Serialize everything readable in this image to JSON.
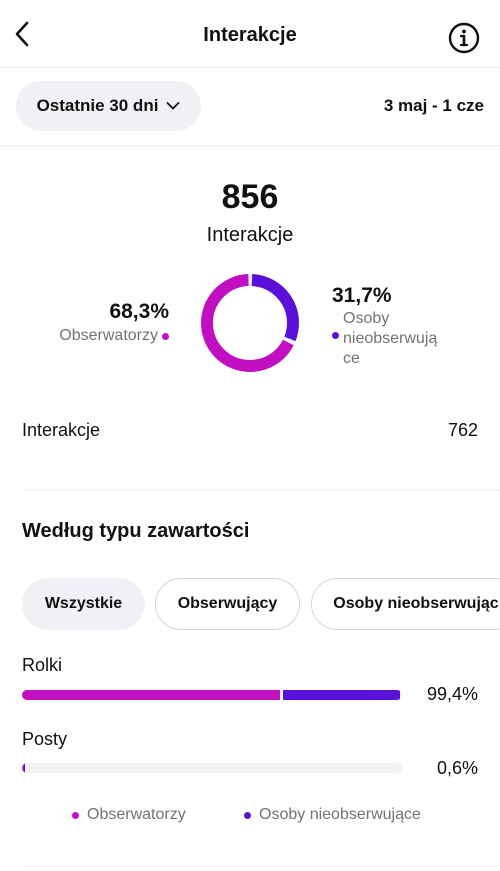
{
  "header": {
    "title": "Interakcje"
  },
  "filter": {
    "period_label": "Ostatnie 30 dni",
    "date_range": "3 maj - 1 cze"
  },
  "summary": {
    "total": "856",
    "total_label": "Interakcje",
    "followers_pct": "68,3%",
    "followers_label": "Obserwatorzy",
    "nonfollowers_pct": "31,7%",
    "nonfollowers_label_lines": [
      "Osoby",
      "nieobserwują",
      "ce"
    ]
  },
  "interactions_row": {
    "label": "Interakcje",
    "value": "762"
  },
  "content_type": {
    "title": "Według typu zawartości",
    "chips": [
      "Wszystkie",
      "Obserwujący",
      "Osoby nieobserwując"
    ],
    "bars": [
      {
        "label": "Rolki",
        "pct_text": "99,4%",
        "total_fraction": 0.994,
        "followers_share": 0.683
      },
      {
        "label": "Posty",
        "pct_text": "0,6%",
        "total_fraction": 0.006,
        "followers_share": 0.5
      }
    ],
    "legend": {
      "followers": "Obserwatorzy",
      "nonfollowers": "Osoby nieobserwujące"
    }
  },
  "colors": {
    "followers": "#c10fc1",
    "nonfollowers": "#5a10d8"
  },
  "icons": {
    "back": "chevron-left-icon",
    "info": "info-icon",
    "dropdown": "chevron-down-icon"
  }
}
